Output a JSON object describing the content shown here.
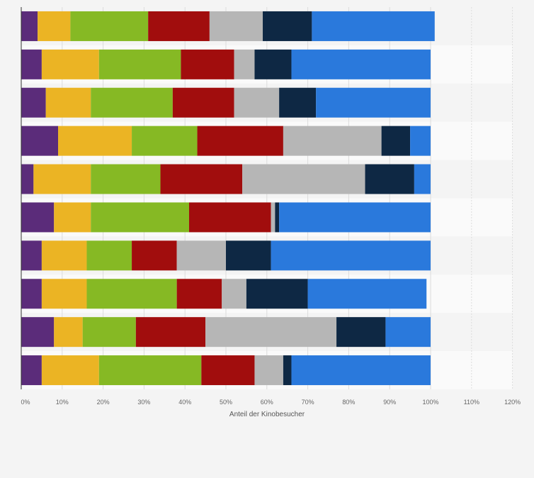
{
  "chart_data": {
    "type": "bar",
    "orientation": "horizontal",
    "stacked": true,
    "xlabel": "Anteil der Kinobesucher",
    "xlim": [
      0,
      120
    ],
    "x_ticks": [
      0,
      10,
      20,
      30,
      40,
      50,
      60,
      70,
      80,
      90,
      100,
      110,
      120
    ],
    "x_tick_labels": [
      "0%",
      "10%",
      "20%",
      "30%",
      "40%",
      "50%",
      "60%",
      "70%",
      "80%",
      "90%",
      "100%",
      "110%",
      "120%"
    ],
    "grid": true,
    "legend": "none",
    "row_count": 10,
    "series": [
      {
        "color": "#5b2c7a",
        "values": [
          4,
          5,
          6,
          9,
          3,
          8,
          5,
          5,
          8,
          5
        ]
      },
      {
        "color": "#ebb424",
        "values": [
          8,
          14,
          11,
          18,
          14,
          9,
          11,
          11,
          7,
          14
        ]
      },
      {
        "color": "#86b924",
        "values": [
          19,
          20,
          20,
          16,
          17,
          24,
          11,
          22,
          13,
          25
        ]
      },
      {
        "color": "#a10d0d",
        "values": [
          15,
          13,
          15,
          21,
          20,
          20,
          11,
          11,
          17,
          13
        ]
      },
      {
        "color": "#b6b6b6",
        "values": [
          13,
          5,
          11,
          24,
          30,
          1,
          12,
          6,
          32,
          7
        ]
      },
      {
        "color": "#0e2844",
        "values": [
          12,
          9,
          9,
          7,
          12,
          1,
          11,
          15,
          12,
          2
        ]
      },
      {
        "color": "#2a79dc",
        "values": [
          30,
          34,
          28,
          5,
          4,
          37,
          39,
          29,
          11,
          34
        ]
      }
    ]
  }
}
